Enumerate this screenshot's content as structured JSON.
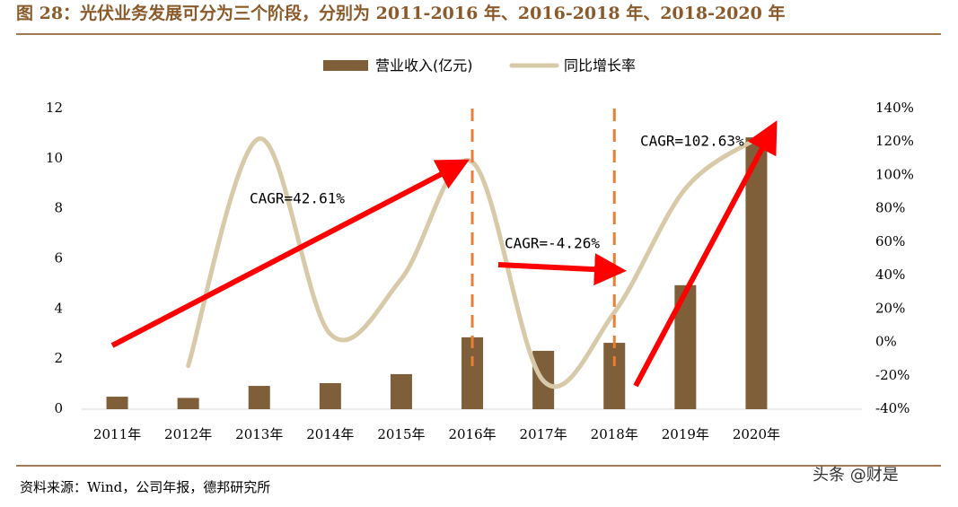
{
  "chart_data": {
    "type": "bar-line",
    "title": "图 28：光伏业务发展可分为三个阶段，分别为 2011-2016 年、2016-2018 年、2018-2020 年",
    "source": "资料来源：Wind，公司年报，德邦研究所",
    "watermark": "头条 @财是",
    "categories": [
      "2011年",
      "2012年",
      "2013年",
      "2014年",
      "2015年",
      "2016年",
      "2017年",
      "2018年",
      "2019年",
      "2020年"
    ],
    "series": [
      {
        "name": "营业收入(亿元)",
        "color": "#7f5f3a",
        "type": "bar",
        "values": [
          0.5,
          0.45,
          0.93,
          1.04,
          1.4,
          2.87,
          2.33,
          2.65,
          4.95,
          10.85
        ]
      },
      {
        "name": "同比增长率",
        "color": "#d8caa9",
        "type": "line",
        "axis": "y2",
        "values": [
          null,
          -14,
          122,
          5,
          38,
          108,
          -23,
          18,
          92,
          122
        ]
      }
    ],
    "ylim": [
      0,
      12
    ],
    "yticks": [
      0,
      2,
      4,
      6,
      8,
      10,
      12
    ],
    "y2lim": [
      -40,
      140
    ],
    "y2ticks": [
      {
        "value": -40,
        "label": "-40%"
      },
      {
        "value": -20,
        "label": "-20%"
      },
      {
        "value": 0,
        "label": "0%"
      },
      {
        "value": 20,
        "label": "20%"
      },
      {
        "value": 40,
        "label": "40%"
      },
      {
        "value": 60,
        "label": "60%"
      },
      {
        "value": 80,
        "label": "80%"
      },
      {
        "value": 100,
        "label": "100%"
      },
      {
        "value": 120,
        "label": "120%"
      },
      {
        "value": 140,
        "label": "140%"
      }
    ],
    "annotations": [
      "CAGR=42.61%",
      "CAGR=-4.26%",
      "CAGR=102.63%"
    ],
    "grid": false
  }
}
